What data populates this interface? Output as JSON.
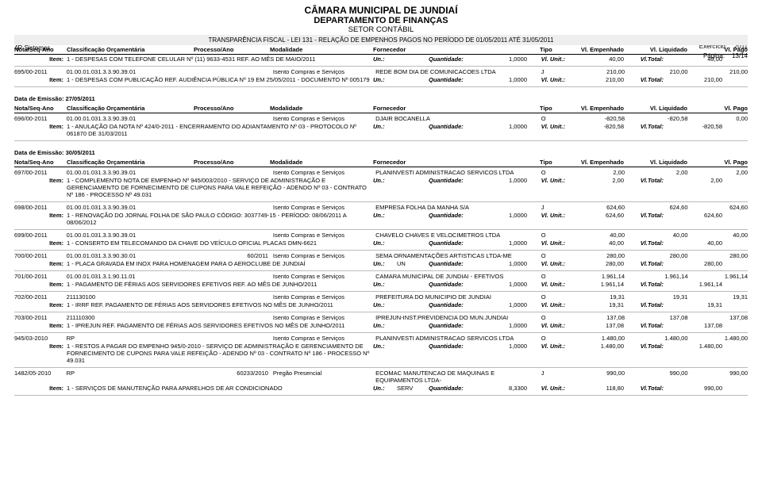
{
  "header": {
    "sys": "4R Sistemas",
    "title1": "CÂMARA MUNICIPAL DE JUNDIAÍ",
    "title2": "DEPARTAMENTO DE FINANÇAS",
    "title3": "SETOR CONTÁBIL",
    "banner": "TRANSPARÊNCIA FISCAL - LEI 131 - RELAÇÃO DE EMPENHOS PAGOS NO PERÍODO DE 01/05/2011 ATÉ 31/05/2011",
    "exerc_lbl": "Exercício:",
    "exerc_val": "2011",
    "pagina_lbl": "Página:",
    "pagina_val": "13/14"
  },
  "cols": {
    "nota": "Nota/Seq-Ano",
    "class": "Classificação Orçamentária",
    "proc": "Processo/Ano",
    "mod": "Modalidade",
    "forn": "Fornecedor",
    "tipo": "Tipo",
    "emp": "Vl. Empenhado",
    "liq": "Vl. Liquidado",
    "pago": "Vl. Pago"
  },
  "item_cols": {
    "item": "Item:",
    "un": "Un.:",
    "qtd": "Quantidade:",
    "unit": "Vl. Unit.:",
    "tot": "Vl.Total:"
  },
  "groups": [
    {
      "date_line": "",
      "entries": [
        {
          "nota": "",
          "class": "",
          "proc": "",
          "mod": "",
          "forn": "",
          "tipo": "",
          "emp": "",
          "liq": "",
          "pago": "",
          "skip_row": true,
          "item_desc": "1 - DESPESAS COM TELEFONE CELULAR Nº (11) 9633-4531 REF. AO MÊS DE MAIO/2011",
          "un": "",
          "qtd": "1,0000",
          "unit": "40,00",
          "tot": "40,00"
        },
        {
          "nota": "695/00-2011",
          "class": "01.00.01.031.3.3.90.39.01",
          "proc": "",
          "mod": "Isento Compras e Serviços",
          "forn": "REDE BOM DIA DE COMUNICACOES LTDA",
          "tipo": "J",
          "emp": "210,00",
          "liq": "210,00",
          "pago": "210,00",
          "item_desc": "1 - DESPESAS COM PUBLICAÇÃO REF. AUDIÊNCIA PÚBLICA Nº 19 EM 25/05/2011 - DOCUMENTO Nº 005179",
          "un": "",
          "qtd": "1,0000",
          "unit": "210,00",
          "tot": "210,00"
        }
      ]
    },
    {
      "date_line": "Data de Emissão: 27/05/2011",
      "entries": [
        {
          "nota": "696/00-2011",
          "class": "01.00.01.031.3.3.90.39.01",
          "proc": "",
          "mod": "Isento Compras e Serviços",
          "forn": "DJAIR BOCANELLA",
          "tipo": "O",
          "emp": "-820,58",
          "liq": "-820,58",
          "pago": "0,00",
          "item_desc": "1 - ANULAÇÃO DA NOTA Nº 424/0-2011 - ENCERRAMENTO DO ADIANTAMENTO Nº 03 - PROTOCOLO Nº 061870 DE 31/03/2011",
          "un": "",
          "qtd": "1,0000",
          "unit": "-820,58",
          "tot": "-820,58"
        }
      ]
    },
    {
      "date_line": "Data de Emissão: 30/05/2011",
      "entries": [
        {
          "nota": "697/00-2011",
          "class": "01.00.01.031.3.3.90.39.01",
          "proc": "",
          "mod": "Isento Compras e Serviços",
          "forn": "PLANINVESTI ADMINISTRACAO SERVICOS LTDA",
          "tipo": "O",
          "emp": "2,00",
          "liq": "2,00",
          "pago": "2,00",
          "item_desc": "1 - COMPLEMENTO NOTA DE EMPENHO Nº 945/003/2010 - SERVIÇO DE ADMINISTRAÇÃO E GERENCIAMENTO DE FORNECIMENTO DE CUPONS PARA VALE REFEIÇÃO - ADENDO Nº 03 - CONTRATO Nº 186 - PROCESSO Nº 49.031",
          "un": "",
          "qtd": "1,0000",
          "unit": "2,00",
          "tot": "2,00"
        },
        {
          "nota": "698/00-2011",
          "class": "01.00.01.031.3.3.90.39.01",
          "proc": "",
          "mod": "Isento Compras e Serviços",
          "forn": "EMPRESA FOLHA DA MANHA S/A",
          "tipo": "J",
          "emp": "624,60",
          "liq": "624,60",
          "pago": "624,60",
          "item_desc": "1 - RENOVAÇÃO DO JORNAL FOLHA DE SÃO PAULO CÓDIGO: 3037749-15 - PERÍODO: 08/06/2011 A 08/06/2012",
          "un": "",
          "qtd": "1,0000",
          "unit": "624,60",
          "tot": "624,60"
        },
        {
          "nota": "699/00-2011",
          "class": "01.00.01.031.3.3.90.39.01",
          "proc": "",
          "mod": "Isento Compras e Serviços",
          "forn": "CHAVELO CHAVES E VELOCIMETROS LTDA",
          "tipo": "O",
          "emp": "40,00",
          "liq": "40,00",
          "pago": "40,00",
          "item_desc": "1 - CONSERTO EM TELECOMANDO DA CHAVE DO VEÍCULO OFICIAL PLACAS DMN-6621",
          "un": "",
          "qtd": "1,0000",
          "unit": "40,00",
          "tot": "40,00"
        },
        {
          "nota": "700/00-2011",
          "class": "01.00.01.031.3.3.90.30.01",
          "proc": "60/2011",
          "mod": "Isento Compras e Serviços",
          "forn": "SEMA ORNAMENTAÇÕES ARTISTICAS LTDA-ME",
          "tipo": "O",
          "emp": "280,00",
          "liq": "280,00",
          "pago": "280,00",
          "item_desc": "1 - PLACA GRAVADA EM INOX PARA HOMENAGEM PARA O AEROCLUBE DE JUNDIAÍ",
          "un": "UN",
          "qtd": "1,0000",
          "unit": "280,00",
          "tot": "280,00"
        },
        {
          "nota": "701/00-2011",
          "class": "01.00.01.031.3.1.90.11.01",
          "proc": "",
          "mod": "Isento Compras e Serviços",
          "forn": "CAMARA MUNICIPAL DE JUNDIAI - EFETIVOS",
          "tipo": "O",
          "emp": "1.961,14",
          "liq": "1.961,14",
          "pago": "1.961,14",
          "item_desc": "1 - PAGAMENTO DE FÉRIAS AOS SERVIDORES EFETIVOS REF. AO MÊS DE JUNHO/2011",
          "un": "",
          "qtd": "1,0000",
          "unit": "1.961,14",
          "tot": "1.961,14"
        },
        {
          "nota": "702/00-2011",
          "class": "211130100",
          "proc": "",
          "mod": "Isento Compras e Serviços",
          "forn": "PREFEITURA DO MUNICIPIO DE JUNDIAI",
          "tipo": "O",
          "emp": "19,31",
          "liq": "19,31",
          "pago": "19,31",
          "item_desc": "1 - IRRF REF. PAGAMENTO DE FÉRIAS AOS SERVIDORES EFETIVOS NO MÊS DE JUNHO/2011",
          "un": "",
          "qtd": "1,0000",
          "unit": "19,31",
          "tot": "19,31"
        },
        {
          "nota": "703/00-2011",
          "class": "211110300",
          "proc": "",
          "mod": "Isento Compras e Serviços",
          "forn": "IPREJUN-INST.PREVIDENCIA DO MUN.JUNDIAI",
          "tipo": "O",
          "emp": "137,08",
          "liq": "137,08",
          "pago": "137,08",
          "item_desc": "1 - IPREJUN REF. PAGAMENTO DE FÉRIAS AOS SERVIDORES EFETIVOS NO MÊS DE JUNHO/2011",
          "un": "",
          "qtd": "1,0000",
          "unit": "137,08",
          "tot": "137,08"
        },
        {
          "nota": "945/03-2010",
          "class": "RP",
          "proc": "",
          "mod": "Isento Compras e Serviços",
          "forn": "PLANINVESTI ADMINISTRACAO SERVICOS LTDA",
          "tipo": "O",
          "emp": "1.480,00",
          "liq": "1.480,00",
          "pago": "1.480,00",
          "item_desc": "1 - RESTOS A PAGAR DO EMPENHO 945/0-2010 - SERVIÇO DE ADMINISTRAÇÃO E GERENCIAMENTO DE FORNECIMENTO DE CUPONS PARA VALE REFEIÇÃO - ADENDO Nº 03 - CONTRATO Nº 186 - PROCESSO Nº 49.031",
          "un": "",
          "qtd": "1,0000",
          "unit": "1.480,00",
          "tot": "1.480,00"
        },
        {
          "nota": "1482/05-2010",
          "class": "RP",
          "proc": "60233/2010",
          "mod": "Pregão Presencial",
          "forn": "ECOMAC MANUTENCAO DE MAQUINAS E EQUIPAMENTOS LTDA-",
          "tipo": "J",
          "emp": "990,00",
          "liq": "990,00",
          "pago": "990,00",
          "item_desc": "1 - SERVIÇOS DE MANUTENÇÃO PARA APARELHOS DE AR CONDICIONADO",
          "un": "SERV",
          "qtd": "8,3300",
          "unit": "118,80",
          "tot": "990,00"
        }
      ]
    }
  ]
}
